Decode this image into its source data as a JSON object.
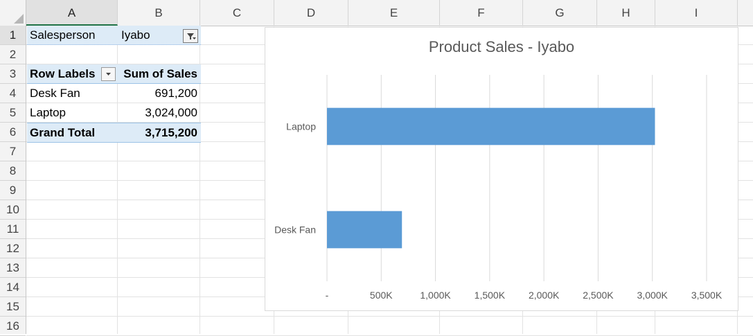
{
  "columns": [
    "A",
    "B",
    "C",
    "D",
    "E",
    "F",
    "G",
    "H",
    "I"
  ],
  "selected_column": "A",
  "rows": [
    "1",
    "2",
    "3",
    "4",
    "5",
    "6",
    "7",
    "8",
    "9",
    "10",
    "11",
    "12",
    "13",
    "14",
    "15",
    "16"
  ],
  "selected_row": "1",
  "pivot": {
    "filter_label": "Salesperson",
    "filter_value": "Iyabo",
    "row_labels_header": "Row Labels",
    "values_header": "Sum of Sales",
    "rows": [
      {
        "label": "Desk Fan",
        "value": "691,200"
      },
      {
        "label": "Laptop",
        "value": "3,024,000"
      }
    ],
    "grand_total_label": "Grand Total",
    "grand_total_value": "3,715,200"
  },
  "colors": {
    "bar": "#5b9bd5",
    "pivot_header_fill": "#ddebf7",
    "gridline": "#d9d9d9"
  },
  "icons": {
    "filter_button": "filter-funnel-icon",
    "dropdown_button": "chevron-down-icon"
  },
  "chart_data": {
    "type": "bar",
    "orientation": "horizontal",
    "title": "Product Sales - Iyabo",
    "categories": [
      "Desk Fan",
      "Laptop"
    ],
    "values": [
      691200,
      3024000
    ],
    "xlim": [
      0,
      3500000
    ],
    "x_ticks": [
      0,
      500000,
      1000000,
      1500000,
      2000000,
      2500000,
      3000000,
      3500000
    ],
    "x_tick_labels": [
      "-",
      "500K",
      "1,000K",
      "1,500K",
      "2,000K",
      "2,500K",
      "3,000K",
      "3,500K"
    ],
    "grid": "vertical",
    "legend": "none",
    "xlabel": "",
    "ylabel": ""
  }
}
